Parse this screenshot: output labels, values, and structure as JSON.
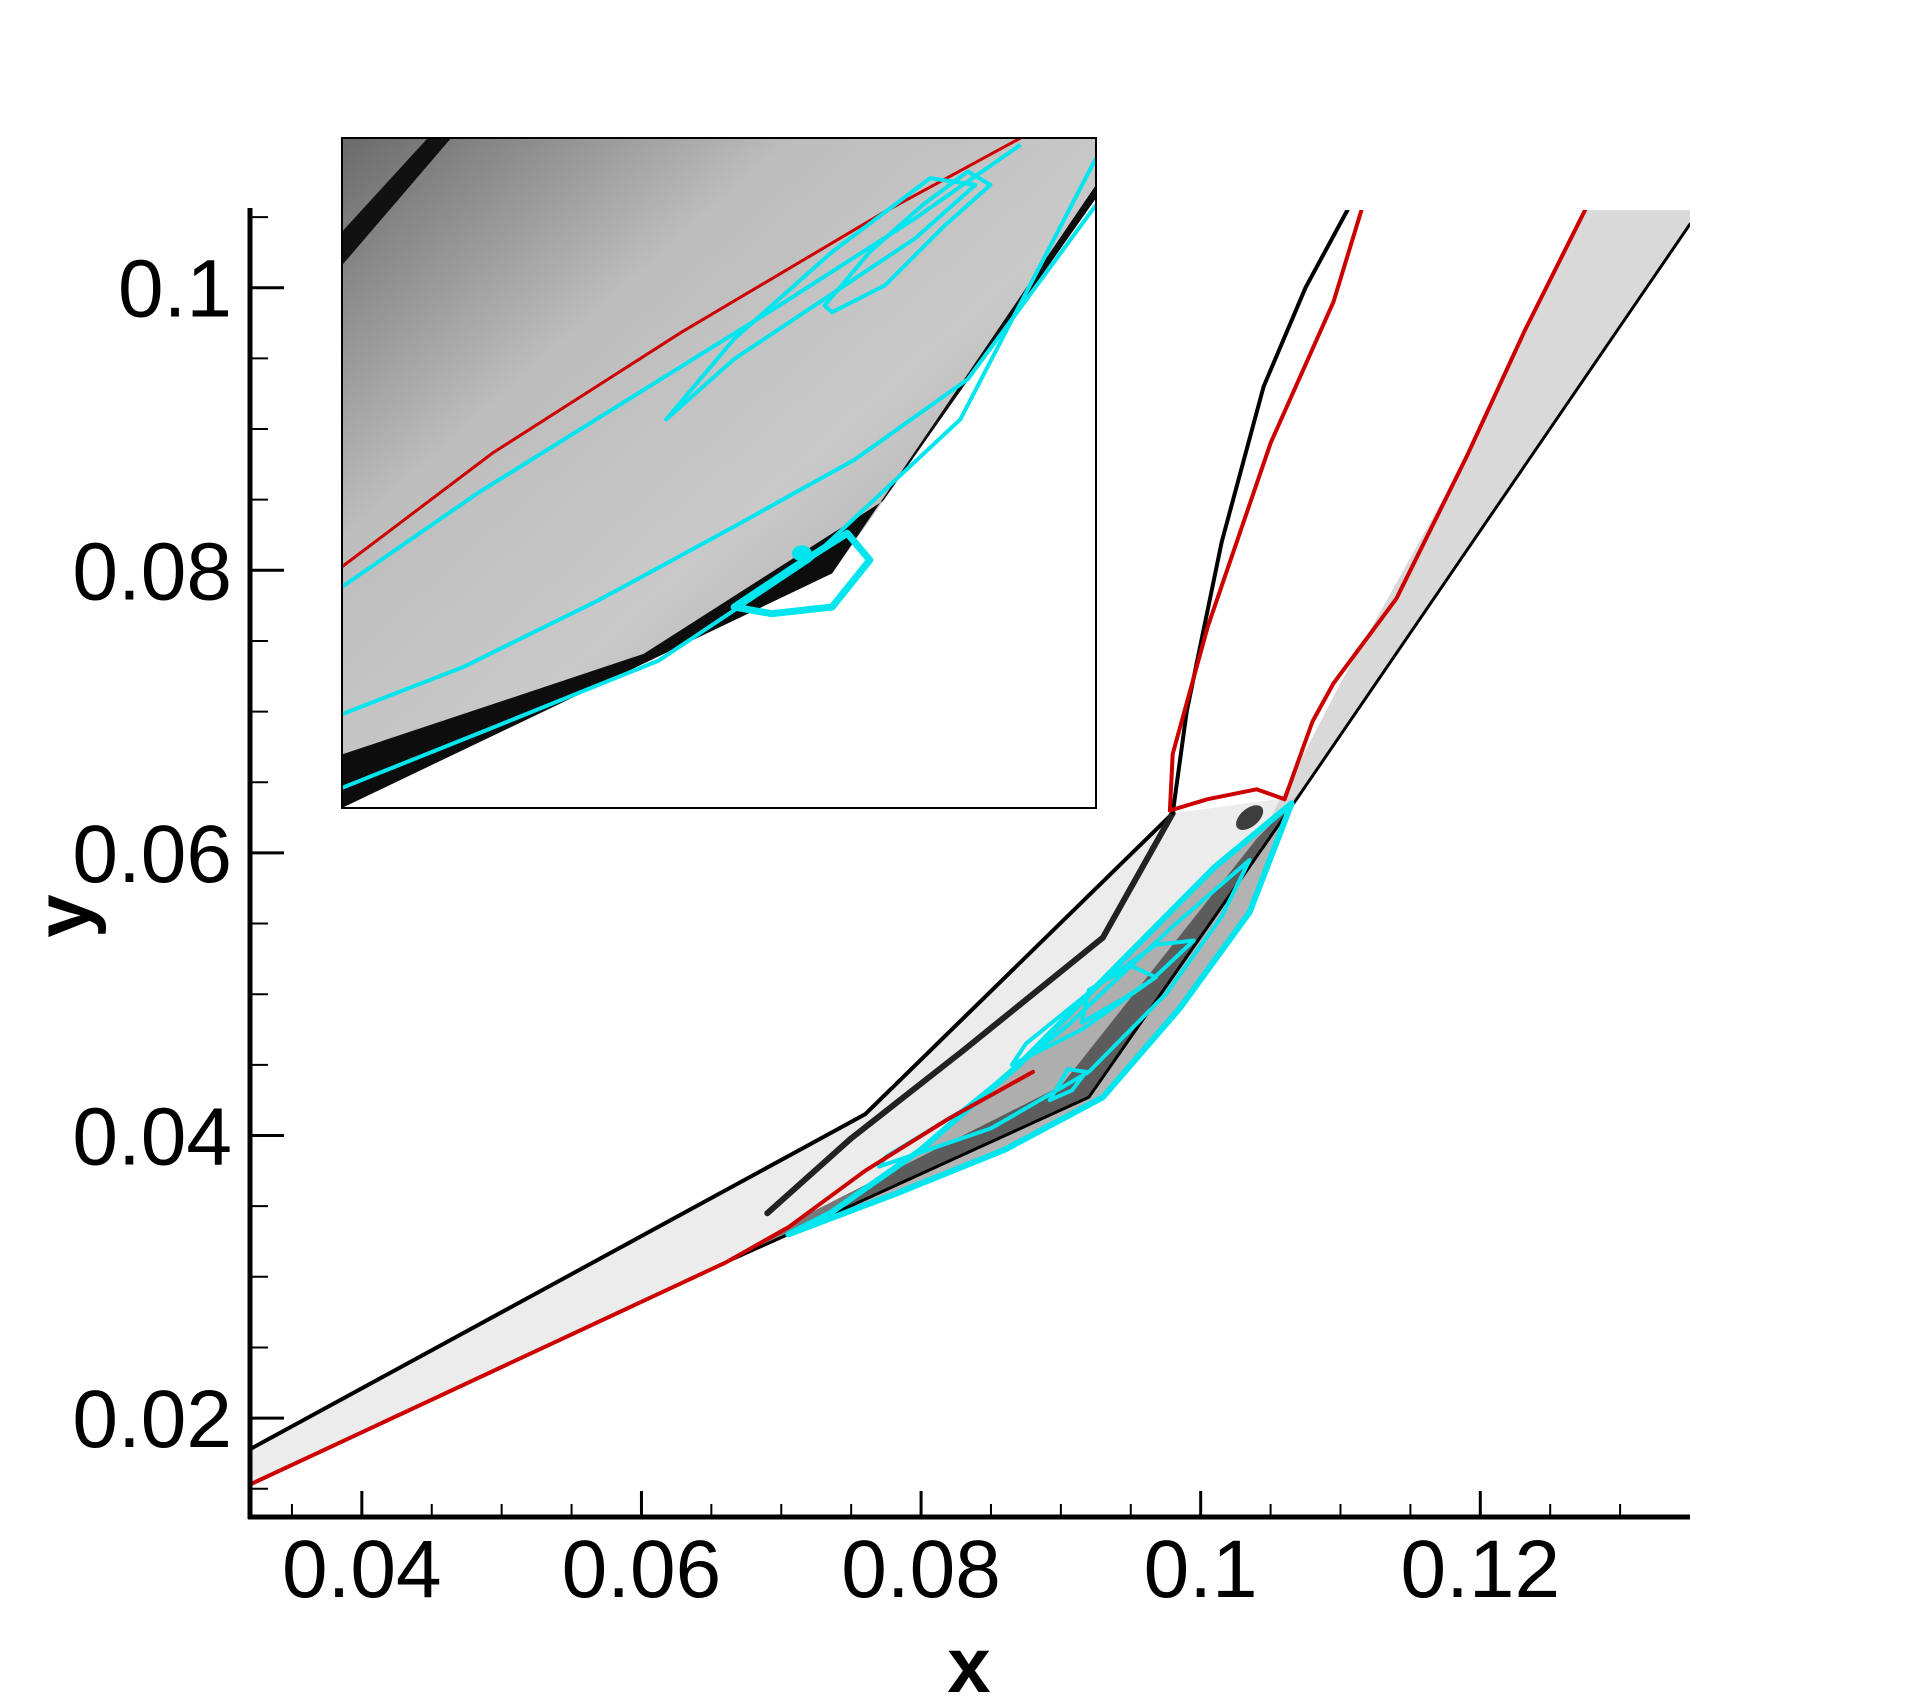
{
  "chart_data": {
    "type": "contour",
    "xlabel": "x",
    "ylabel": "y",
    "xlim": [
      0.032,
      0.135
    ],
    "ylim": [
      0.013,
      0.1055
    ],
    "x_ticks": [
      0.04,
      0.06,
      0.08,
      0.1,
      0.12
    ],
    "x_tick_labels": [
      "0.04",
      "0.06",
      "0.08",
      "0.1",
      "0.12"
    ],
    "y_ticks": [
      0.02,
      0.04,
      0.06,
      0.08,
      0.1
    ],
    "y_tick_labels": [
      "0.02",
      "0.04",
      "0.06",
      "0.08",
      "0.1"
    ],
    "grid": false,
    "legend": "none",
    "colors": {
      "sonic_line": "#cc0000",
      "streamlines": "#00e5ee",
      "shock": "#000000",
      "field": "#9a9a9a"
    },
    "wall": {
      "x": [
        0.032,
        0.066,
        0.0705,
        0.092,
        0.107,
        0.135
      ],
      "y": [
        0.0153,
        0.031,
        0.033,
        0.0427,
        0.064,
        0.1045
      ]
    },
    "lead_shock": {
      "x": [
        0.032,
        0.076,
        0.098
      ],
      "y": [
        0.0178,
        0.0415,
        0.0628
      ]
    },
    "separation_shock": {
      "x": [
        0.069,
        0.075,
        0.083,
        0.093,
        0.098
      ],
      "y": [
        0.0345,
        0.0398,
        0.046,
        0.054,
        0.0628
      ]
    },
    "bow_shock": {
      "x": [
        0.098,
        0.099,
        0.1015,
        0.1045,
        0.1075,
        0.1105
      ],
      "y": [
        0.0628,
        0.07,
        0.082,
        0.093,
        0.1,
        0.1055
      ]
    },
    "sonic_line_lower": {
      "x": [
        0.032,
        0.066,
        0.0705,
        0.076,
        0.082,
        0.088
      ],
      "y": [
        0.0153,
        0.031,
        0.0335,
        0.0375,
        0.0412,
        0.0445
      ]
    },
    "sonic_line_bow": {
      "x": [
        0.1115,
        0.1095,
        0.105,
        0.1005,
        0.098,
        0.0978,
        0.1005,
        0.104,
        0.106
      ],
      "y": [
        0.1055,
        0.099,
        0.089,
        0.076,
        0.067,
        0.063,
        0.0638,
        0.0645,
        0.0638
      ]
    },
    "sonic_line_upper": {
      "x": [
        0.106,
        0.108,
        0.1095,
        0.114,
        0.119,
        0.1232,
        0.1275
      ],
      "y": [
        0.0638,
        0.0693,
        0.072,
        0.078,
        0.088,
        0.097,
        0.1055
      ]
    },
    "separation_bubble_streamlines": [
      {
        "x": [
          0.0705,
          0.078,
          0.086,
          0.093,
          0.0985,
          0.1035,
          0.1065,
          0.101,
          0.094,
          0.087,
          0.08,
          0.0735,
          0.0705
        ],
        "y": [
          0.033,
          0.0358,
          0.039,
          0.0427,
          0.049,
          0.0558,
          0.0635,
          0.059,
          0.052,
          0.045,
          0.039,
          0.0345,
          0.033
        ]
      },
      {
        "x": [
          0.077,
          0.085,
          0.092,
          0.0975,
          0.1015,
          0.1035,
          0.098,
          0.0905,
          0.083,
          0.0775,
          0.077
        ],
        "y": [
          0.0378,
          0.0405,
          0.0445,
          0.05,
          0.0555,
          0.0595,
          0.0548,
          0.0478,
          0.0418,
          0.0385,
          0.0378
        ]
      },
      {
        "x": [
          0.0865,
          0.0915,
          0.0965,
          0.0995,
          0.0968,
          0.0925,
          0.0875,
          0.0865
        ],
        "y": [
          0.045,
          0.0475,
          0.051,
          0.0538,
          0.0535,
          0.0505,
          0.0465,
          0.045
        ]
      },
      {
        "x": [
          0.0915,
          0.0945,
          0.0968,
          0.095,
          0.092,
          0.0915
        ],
        "y": [
          0.048,
          0.0497,
          0.0512,
          0.052,
          0.0503,
          0.048
        ]
      },
      {
        "x": [
          0.0892,
          0.0908,
          0.0918,
          0.0905,
          0.0892
        ],
        "y": [
          0.0425,
          0.0432,
          0.0445,
          0.0447,
          0.0425
        ]
      }
    ],
    "inset": {
      "description": "magnified view of separation region",
      "sonic_line": {
        "u": [
          0.0,
          0.2,
          0.45,
          0.72,
          0.9
        ],
        "v": [
          0.36,
          0.53,
          0.71,
          0.89,
          1.0
        ]
      },
      "streamlines": [
        {
          "u": [
            0.0,
            0.18,
            0.38,
            0.58,
            0.76,
            0.9
          ],
          "v": [
            0.33,
            0.47,
            0.61,
            0.75,
            0.88,
            0.99
          ]
        },
        {
          "u": [
            0.0,
            0.16,
            0.34,
            0.52,
            0.68,
            0.83,
            1.0
          ],
          "v": [
            0.14,
            0.21,
            0.31,
            0.42,
            0.52,
            0.64,
            0.9
          ]
        },
        {
          "u": [
            0.0,
            0.2,
            0.42,
            0.62,
            0.82,
            1.0
          ],
          "v": [
            0.03,
            0.12,
            0.22,
            0.37,
            0.58,
            0.97
          ]
        },
        {
          "closed": true,
          "u": [
            0.43,
            0.52,
            0.64,
            0.76,
            0.84,
            0.78,
            0.65,
            0.52,
            0.43
          ],
          "v": [
            0.58,
            0.67,
            0.76,
            0.85,
            0.93,
            0.94,
            0.83,
            0.7,
            0.58
          ]
        },
        {
          "closed": true,
          "u": [
            0.64,
            0.7,
            0.77,
            0.83,
            0.86,
            0.8,
            0.72,
            0.65,
            0.64
          ],
          "v": [
            0.75,
            0.83,
            0.9,
            0.95,
            0.93,
            0.87,
            0.78,
            0.74,
            0.75
          ]
        },
        {
          "closed": true,
          "u": [
            0.52,
            0.6,
            0.67,
            0.7,
            0.65,
            0.57,
            0.52
          ],
          "v": [
            0.3,
            0.36,
            0.41,
            0.37,
            0.3,
            0.29,
            0.3
          ]
        }
      ],
      "vortex_core": {
        "u": 0.61,
        "v": 0.38
      }
    }
  }
}
